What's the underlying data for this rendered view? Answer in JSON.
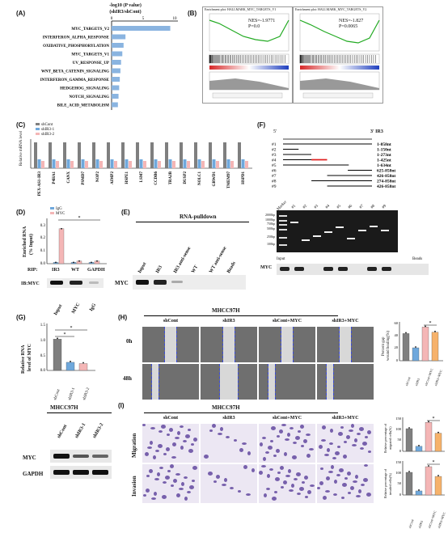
{
  "panels": {
    "A": "(A)",
    "B": "(B)",
    "C": "(C)",
    "D": "(D)",
    "E": "(E)",
    "F": "(F)",
    "G": "(G)",
    "H": "(H)",
    "I": "(I)"
  },
  "A": {
    "title_line1": "-log10 (P value)",
    "title_line2": "(shIR3/shCont)",
    "axis_ticks": [
      "0",
      "5",
      "10"
    ],
    "chart_data": {
      "type": "bar",
      "orientation": "horizontal",
      "categories": [
        "MYC_TARGETS_V2",
        "INTERFERON_ALPHA_RESPONSE",
        "OXIDATIVE_PHOSPHORYLATION",
        "MYC_TARGETS_V1",
        "UV_RESPONSE_UP",
        "WNT_BETA_CATENIN_SIGNALING",
        "INTERFERON_GAMMA_RESPONSE",
        "HEDGEHOG_SIGNALING",
        "NOTCH_SIGNALING",
        "BILE_ACID_METABOLISM"
      ],
      "values": [
        9.3,
        2.2,
        1.9,
        1.7,
        1.5,
        1.4,
        1.3,
        1.2,
        1.1,
        1.0
      ],
      "xlim": [
        0,
        10
      ],
      "color": "#8ab4e0"
    }
  },
  "B": {
    "plot1_title": "Enrichment plot: HALLMARK_MYC_TARGETS_V1",
    "plot2_title": "Enrichment plot: HALLMARK_MYC_TARGETS_V2",
    "plot1_nes": "NES=-1.9771",
    "plot1_p": "P=0.0",
    "plot2_nes": "NES=-1.827",
    "plot2_p": "P=0.0065"
  },
  "C": {
    "ylabel": "Relative mRNA level",
    "legend": [
      "shCont",
      "shIR3-1",
      "shIR3-2"
    ],
    "genes": [
      "PEX-AS1-IR3",
      "P4HA1",
      "CANX",
      "PSMD7",
      "NOP2",
      "AIMP2",
      "HSPE1",
      "LSM7",
      "CCDB6",
      "TRA2B",
      "DUSP2",
      "NOLC1",
      "GRWD1",
      "TMEM97",
      "HSPD1"
    ],
    "colors": [
      "#7f7f7f",
      "#6fa8dc",
      "#f4b6b6"
    ]
  },
  "D": {
    "legend": [
      "IgG",
      "MYC"
    ],
    "ylabel1": "Enriched RNA",
    "ylabel2": "(% Input)",
    "yticks": [
      "0.3",
      "0.2",
      "0.1",
      "0.0"
    ],
    "rip_label": "RIP:",
    "rip_items": [
      "IR3",
      "WT",
      "GAPDH"
    ],
    "ib_label": "IB:MYC",
    "lanes": [
      "Input",
      "MYC",
      "IgG"
    ],
    "sig": "*",
    "chart_data": {
      "type": "bar",
      "categories": [
        "IR3",
        "WT",
        "GAPDH"
      ],
      "series": [
        {
          "name": "IgG",
          "values": [
            0.01,
            0.01,
            0.01
          ]
        },
        {
          "name": "MYC",
          "values": [
            0.27,
            0.02,
            0.02
          ]
        }
      ],
      "ylim": [
        0,
        0.35
      ]
    }
  },
  "E": {
    "title": "RNA-pulldown",
    "lanes": [
      "Input",
      "IR3",
      "IR3 anti-sense",
      "WT",
      "WT anti-sense",
      "Beads"
    ],
    "row_label": "MYC"
  },
  "F": {
    "axis_left": "5'",
    "axis_right": "3' IR3",
    "constructs": [
      {
        "id": "#1",
        "range": "1-858nt"
      },
      {
        "id": "#2",
        "range": "1-150nt"
      },
      {
        "id": "#3",
        "range": "1-273nt"
      },
      {
        "id": "#4",
        "range": "1-425nt"
      },
      {
        "id": "#5",
        "range": "1-634nt"
      },
      {
        "id": "#6",
        "range": "625-858nt"
      },
      {
        "id": "#7",
        "range": "426-858nt"
      },
      {
        "id": "#8",
        "range": "274-858nt"
      },
      {
        "id": "#9",
        "range": "426-858nt"
      }
    ],
    "marker_label": "Marker",
    "lanes": [
      "#1",
      "#2",
      "#3",
      "#4",
      "#5",
      "#6",
      "#7",
      "#8",
      "#9"
    ],
    "ladder": [
      "2000bp",
      "1000bp",
      "750bp",
      "500bp",
      "250bp",
      "100bp"
    ],
    "blot_input": "Input",
    "blot_beads": "Beads",
    "blot_row": "MYC"
  },
  "G": {
    "ylabel1": "Relative RNA",
    "ylabel2": "level of MYC",
    "yticks": [
      "1.5",
      "1.0",
      "0.5",
      "0.0"
    ],
    "categories": [
      "shCont",
      "shIR3-1",
      "shIR3-2"
    ],
    "sig": "*",
    "cell": "MHCC97H",
    "blot_rows": [
      "MYC",
      "GAPDH"
    ],
    "chart_data": {
      "type": "bar",
      "categories": [
        "shCont",
        "shIR3-1",
        "shIR3-2"
      ],
      "values": [
        1.0,
        0.26,
        0.22
      ],
      "ylim": [
        0,
        1.5
      ]
    }
  },
  "H": {
    "title": "MHCC97H",
    "columns": [
      "shCont",
      "shIR3",
      "shCont+MYC",
      "shIR3+MYC"
    ],
    "rows": [
      "0h",
      "48h"
    ],
    "ylabel1": "Percent gap",
    "ylabel2": "wound healing(%)",
    "yticks": [
      "60",
      "40",
      "20",
      "0"
    ],
    "xcats": [
      "shCont",
      "shIR3",
      "shCont+MYC",
      "shIR3+MYC"
    ],
    "sig": "*",
    "chart_data": {
      "type": "bar",
      "categories": [
        "shCont",
        "shIR3",
        "shCont+MYC",
        "shIR3+MYC"
      ],
      "values": [
        42,
        20,
        52,
        44
      ],
      "ylim": [
        0,
        60
      ]
    }
  },
  "I": {
    "title": "MHCC97H",
    "columns": [
      "shCont",
      "shIR3",
      "shCont+MYC",
      "shIR3+MYC"
    ],
    "rows": [
      "Migration",
      "Invasion"
    ],
    "mig_ylabel1": "Relative percentage of",
    "mig_ylabel2": "migrated cells(%)",
    "inv_ylabel1": "Relative percentage of",
    "inv_ylabel2": "invaded cells(%)",
    "yticks": [
      "150",
      "100",
      "50",
      "0"
    ],
    "xcats": [
      "shCont",
      "shIR3",
      "shCont+MYC",
      "shIR3+MYC"
    ],
    "sig": "*",
    "chart_data": [
      {
        "type": "bar",
        "name": "Migration",
        "categories": [
          "shCont",
          "shIR3",
          "shCont+MYC",
          "shIR3+MYC"
        ],
        "values": [
          100,
          22,
          128,
          80
        ],
        "ylim": [
          0,
          150
        ]
      },
      {
        "type": "bar",
        "name": "Invasion",
        "categories": [
          "shCont",
          "shIR3",
          "shCont+MYC",
          "shIR3+MYC"
        ],
        "values": [
          100,
          18,
          125,
          82
        ],
        "ylim": [
          0,
          150
        ]
      }
    ],
    "colors": [
      "#7f7f7f",
      "#6fa8dc",
      "#f4b6b6",
      "#f6b26b"
    ]
  }
}
